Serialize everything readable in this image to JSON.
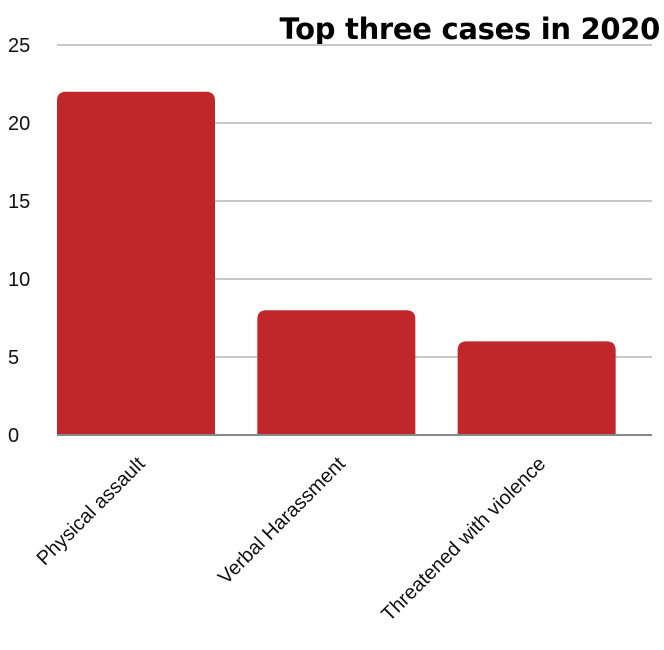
{
  "chart_data": {
    "type": "bar",
    "title": "Top three cases in 2020",
    "categories": [
      "Physical assault",
      "Verbal Harassment",
      "Threatened with violence"
    ],
    "values": [
      22,
      8,
      6
    ],
    "ylim": [
      0,
      25
    ],
    "yticks": [
      0,
      5,
      10,
      15,
      20,
      25
    ],
    "grid": true,
    "bar_color": "#c1272a",
    "grid_color": "#c8c8c8",
    "baseline_color": "#888888"
  }
}
